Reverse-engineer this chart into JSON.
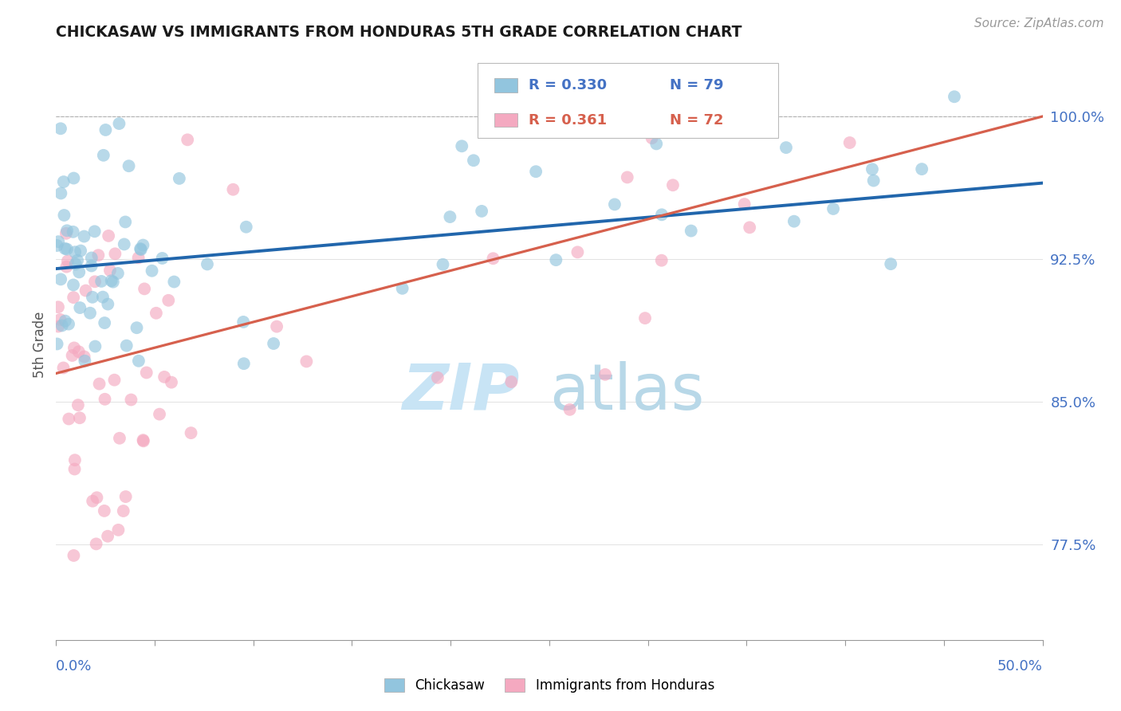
{
  "title": "CHICKASAW VS IMMIGRANTS FROM HONDURAS 5TH GRADE CORRELATION CHART",
  "source_text": "Source: ZipAtlas.com",
  "ylabel": "5th Grade",
  "y_ticks": [
    77.5,
    85.0,
    92.5,
    100.0
  ],
  "y_tick_labels": [
    "77.5%",
    "85.0%",
    "92.5%",
    "100.0%"
  ],
  "xmin": 0.0,
  "xmax": 50.0,
  "ymin": 72.5,
  "ymax": 103.5,
  "r_blue": 0.33,
  "n_blue": 79,
  "r_pink": 0.361,
  "n_pink": 72,
  "blue_color": "#92c5de",
  "pink_color": "#f4a9c0",
  "blue_line_color": "#2166ac",
  "pink_line_color": "#d6604d",
  "legend_label_blue": "Chickasaw",
  "legend_label_pink": "Immigrants from Honduras",
  "watermark_color": "#c8e4f5",
  "title_color": "#1a1a1a",
  "tick_label_color": "#4472c4",
  "blue_trendline": [
    92.0,
    96.5
  ],
  "pink_trendline": [
    86.5,
    100.0
  ]
}
